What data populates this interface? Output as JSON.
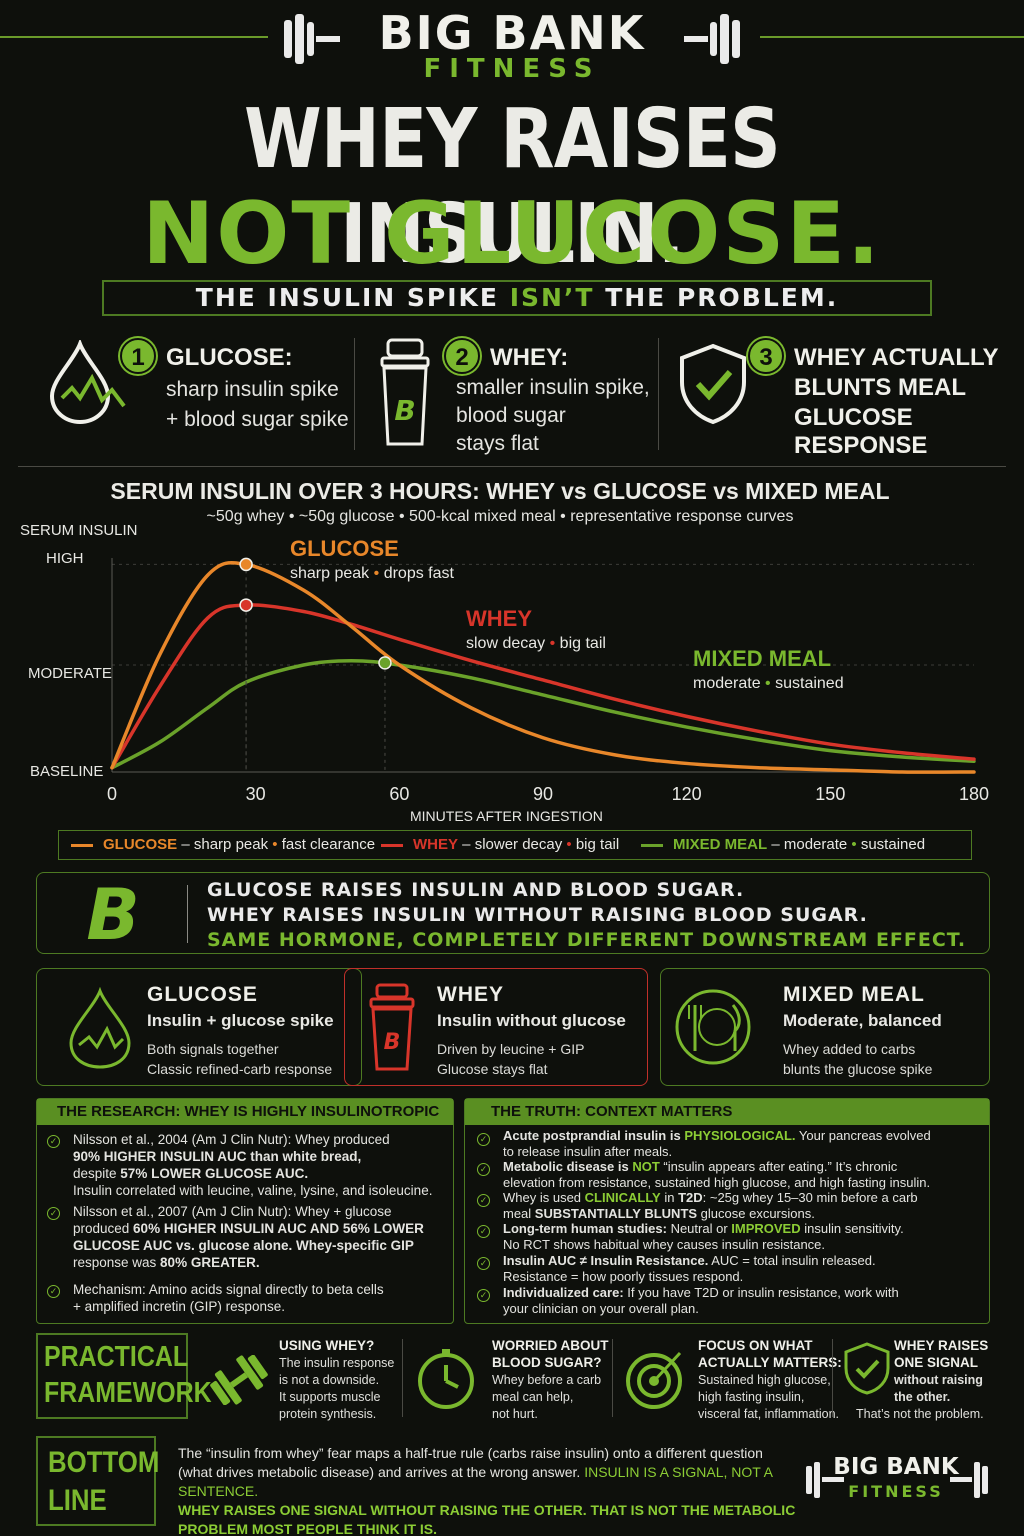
{
  "brand": {
    "name": "BIG BANK",
    "sub": "FITNESS"
  },
  "title": {
    "line1": "WHEY RAISES INSULIN.",
    "line2": "NOT GLUCOSE.",
    "subtitle_a": "THE INSULIN SPIKE ",
    "subtitle_b": "ISN’T",
    "subtitle_c": " THE PROBLEM."
  },
  "points": [
    {
      "num": "1",
      "title": "GLUCOSE:",
      "text1": "sharp insulin spike",
      "text2": "+ blood sugar spike"
    },
    {
      "num": "2",
      "title": "WHEY:",
      "text1": "smaller insulin spike,",
      "text2": "blood sugar",
      "text3": "stays flat"
    },
    {
      "num": "3",
      "title1": "WHEY ACTUALLY",
      "title2": "BLUNTS MEAL",
      "title3": "GLUCOSE RESPONSE"
    }
  ],
  "chart": {
    "title": "SERUM INSULIN OVER 3 HOURS: WHEY vs GLUCOSE vs MIXED MEAL",
    "subtitle": "~50g whey  •  ~50g glucose  •  500-kcal mixed meal  •  representative response curves",
    "ylabel": "SERUM INSULIN",
    "xlabel": "MINUTES AFTER INGESTION",
    "ylevels": [
      "HIGH",
      "MODERATE",
      "BASELINE"
    ],
    "xticks": [
      "0",
      "30",
      "60",
      "90",
      "120",
      "150",
      "180"
    ],
    "labels": {
      "glucose": {
        "name": "GLUCOSE",
        "a": "sharp peak",
        "b": "drops fast"
      },
      "whey": {
        "name": "WHEY",
        "a": "slow decay",
        "b": "big tail"
      },
      "mixed": {
        "name": "MIXED MEAL",
        "a": "moderate",
        "b": "sustained"
      }
    }
  },
  "chart_data": {
    "type": "line",
    "x": [
      0,
      10,
      20,
      28,
      40,
      50,
      60,
      75,
      90,
      105,
      120,
      135,
      150,
      165,
      180
    ],
    "xlim": [
      0,
      180
    ],
    "ylim": [
      0,
      1
    ],
    "series": [
      {
        "name": "GLUCOSE",
        "values": [
          0.02,
          0.55,
          0.92,
          0.97,
          0.85,
          0.68,
          0.5,
          0.3,
          0.16,
          0.08,
          0.04,
          0.02,
          0.01,
          0.0,
          0.0
        ],
        "color": "#e8872a"
      },
      {
        "name": "WHEY",
        "values": [
          0.02,
          0.4,
          0.72,
          0.78,
          0.75,
          0.69,
          0.62,
          0.52,
          0.43,
          0.34,
          0.26,
          0.19,
          0.13,
          0.09,
          0.06
        ],
        "color": "#d8352a"
      },
      {
        "name": "MIXED MEAL",
        "values": [
          0.02,
          0.14,
          0.3,
          0.42,
          0.5,
          0.52,
          0.5,
          0.44,
          0.36,
          0.28,
          0.21,
          0.15,
          0.1,
          0.07,
          0.05
        ],
        "color": "#6aa22a"
      }
    ],
    "peaks": [
      {
        "series": "GLUCOSE",
        "x": 28,
        "y": 0.97
      },
      {
        "series": "WHEY",
        "x": 28,
        "y": 0.78
      },
      {
        "series": "MIXED MEAL",
        "x": 57,
        "y": 0.51
      }
    ]
  },
  "legend": [
    {
      "name": "GLUCOSE",
      "a": "sharp peak",
      "b": "fast clearance",
      "color": "#e8872a"
    },
    {
      "name": "WHEY",
      "a": "slower decay",
      "b": "big tail",
      "color": "#d8352a"
    },
    {
      "name": "MIXED MEAL",
      "a": "moderate",
      "b": "sustained",
      "color": "#6aa22a"
    }
  ],
  "message": {
    "line1": "GLUCOSE RAISES INSULIN AND BLOOD SUGAR.",
    "line2": "WHEY RAISES INSULIN WITHOUT RAISING BLOOD SUGAR.",
    "line3": "SAME HORMONE, COMPLETELY DIFFERENT DOWNSTREAM EFFECT."
  },
  "cards": [
    {
      "title": "GLUCOSE",
      "sub": "Insulin + glucose spike",
      "d1": "Both signals together",
      "d2": "Classic refined-carb response"
    },
    {
      "title": "WHEY",
      "sub": "Insulin without glucose",
      "d1": "Driven by leucine + GIP",
      "d2": "Glucose stays flat"
    },
    {
      "title": "MIXED MEAL",
      "sub": "Moderate, balanced",
      "d1": "Whey added to carbs",
      "d2": "blunts the glucose spike"
    }
  ],
  "research": {
    "header": "THE RESEARCH: WHEY IS HIGHLY INSULINOTROPIC",
    "i1": {
      "a": "Nilsson et al., 2004 (Am J Clin Nutr): Whey produced",
      "b": "90% HIGHER INSULIN AUC than white bread,",
      "c1": "despite ",
      "c2": "57% LOWER GLUCOSE AUC.",
      "d": "Insulin correlated with leucine, valine, lysine, and isoleucine."
    },
    "i2": {
      "a": "Nilsson et al., 2007 (Am J Clin Nutr): Whey + glucose",
      "b1": "produced ",
      "b2": "60% HIGHER INSULIN AUC AND 56% LOWER",
      "c": "GLUCOSE AUC vs. glucose alone. Whey-specific GIP",
      "d1": "response was ",
      "d2": "80% GREATER."
    },
    "i3": {
      "a": "Mechanism: Amino acids signal directly to beta cells",
      "b": "+ amplified incretin (GIP) response."
    }
  },
  "truth": {
    "header": "THE TRUTH: CONTEXT MATTERS",
    "i1": {
      "a1": "Acute postprandial insulin is ",
      "a2": "PHYSIOLOGICAL.",
      "a3": " Your pancreas evolved",
      "b": "to release insulin after meals."
    },
    "i2": {
      "a1": "Metabolic disease is ",
      "a2": "NOT",
      "a3": " “insulin appears after eating.” It’s chronic",
      "b": "elevation from resistance, sustained high glucose, and high fasting insulin."
    },
    "i3": {
      "a1": "Whey is used ",
      "a2": "CLINICALLY",
      "a3": " in ",
      "a4": "T2D",
      "a5": ": ~25g whey 15–30 min before a carb",
      "b1": "meal ",
      "b2": "SUBSTANTIALLY BLUNTS",
      "b3": " glucose excursions."
    },
    "i4": {
      "a1": "Long-term human studies:",
      "a2": " Neutral or ",
      "a3": "IMPROVED",
      "a4": " insulin sensitivity.",
      "b": "No RCT shows habitual whey causes insulin resistance."
    },
    "i5": {
      "a1": "Insulin AUC ≠ Insulin Resistance.",
      "a2": " AUC = total insulin released.",
      "b": "Resistance = how poorly tissues respond."
    },
    "i6": {
      "a1": "Individualized care:",
      "a2": " If you have T2D or insulin resistance, work with",
      "b": "your clinician on your overall plan."
    }
  },
  "framework": {
    "label1": "PRACTICAL",
    "label2": "FRAMEWORK",
    "items": [
      {
        "h1": "USING WHEY?",
        "t1": "The insulin response",
        "t2": "is not a downside.",
        "t3": "It supports muscle",
        "t4": "protein synthesis."
      },
      {
        "h1": "WORRIED ABOUT",
        "h2": "BLOOD SUGAR?",
        "t1": "Whey before a carb",
        "t2": "meal can help,",
        "t3": "not hurt."
      },
      {
        "h1": "FOCUS ON WHAT",
        "h2": "ACTUALLY MATTERS:",
        "t1": "Sustained high glucose,",
        "t2": "high fasting insulin,",
        "t3": "visceral fat, inflammation."
      },
      {
        "h1": "WHEY RAISES",
        "h2": "ONE SIGNAL",
        "t1": "without raising",
        "t2": "the other.",
        "t3": "That’s not the problem."
      }
    ]
  },
  "bottom": {
    "label1": "BOTTOM",
    "label2": "LINE",
    "l1": "The “insulin from whey” fear maps a half-true rule (carbs raise insulin) onto a different question",
    "l2a": "(what drives metabolic disease) and arrives at the wrong answer. ",
    "l2b": "INSULIN IS A SIGNAL, NOT A SENTENCE.",
    "l3": "WHEY RAISES ONE SIGNAL WITHOUT RAISING THE OTHER. THAT IS NOT THE METABOLIC",
    "l4": "PROBLEM MOST PEOPLE THINK IT IS."
  }
}
